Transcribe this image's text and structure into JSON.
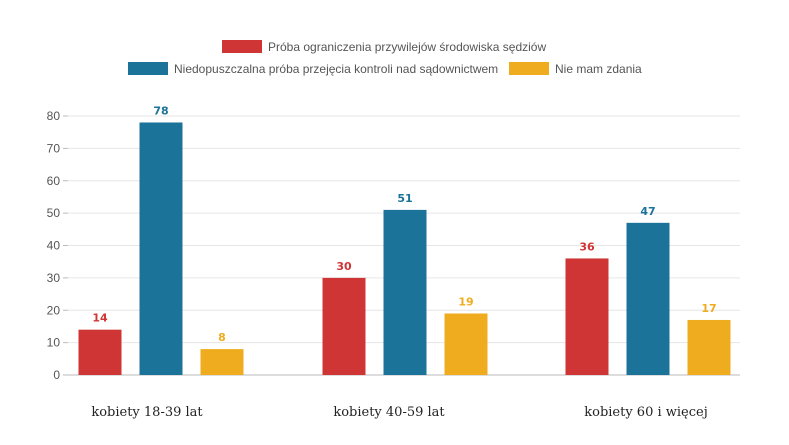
{
  "chart_data": {
    "type": "bar",
    "categories": [
      "kobiety 18-39 lat",
      "kobiety 40-59 lat",
      "kobiety 60 i więcej"
    ],
    "series": [
      {
        "name": "Próba ograniczenia przywilejów środowiska sędziów",
        "color": "#cf3535",
        "values": [
          14,
          30,
          36
        ]
      },
      {
        "name": "Niedopuszczalna próba przejęcia kontroli nad sądownictwem",
        "color": "#1c7399",
        "values": [
          78,
          51,
          47
        ]
      },
      {
        "name": "Nie mam zdania",
        "color": "#efac1f",
        "values": [
          8,
          19,
          17
        ]
      }
    ],
    "ylim": [
      0,
      80
    ],
    "yticks": [
      0,
      10,
      20,
      30,
      40,
      50,
      60,
      70,
      80
    ],
    "grid": true,
    "legend_position": "top-center",
    "data_labels": true
  }
}
